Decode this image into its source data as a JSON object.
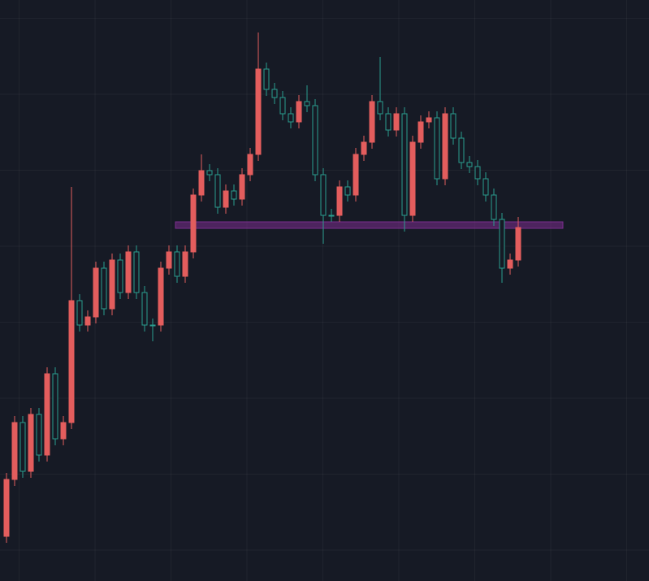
{
  "chart_data": {
    "type": "candlestick",
    "x": [
      0,
      1,
      2,
      3,
      4,
      5,
      6,
      7,
      8,
      9,
      10,
      11,
      12,
      13,
      14,
      15,
      16,
      17,
      18,
      19,
      20,
      21,
      22,
      23,
      24,
      25,
      26,
      27,
      28,
      29,
      30,
      31,
      32,
      33,
      34,
      35,
      36,
      37,
      38,
      39,
      40,
      41,
      42,
      43,
      44,
      45,
      46,
      47,
      48,
      49,
      50,
      51,
      52,
      53,
      54,
      55,
      56,
      57,
      58,
      59,
      60,
      61,
      62,
      63
    ],
    "open": [
      55,
      125,
      195,
      135,
      205,
      155,
      255,
      175,
      195,
      345,
      315,
      325,
      385,
      335,
      395,
      355,
      405,
      355,
      315,
      315,
      385,
      405,
      375,
      405,
      475,
      505,
      500,
      460,
      480,
      470,
      500,
      525,
      630,
      605,
      595,
      575,
      565,
      590,
      585,
      500,
      450,
      450,
      485,
      475,
      525,
      540,
      590,
      575,
      555,
      575,
      450,
      540,
      565,
      570,
      495,
      575,
      545,
      515,
      510,
      495,
      475,
      445,
      385,
      395
    ],
    "high": [
      133,
      203,
      203,
      213,
      213,
      263,
      263,
      203,
      485,
      353,
      333,
      393,
      393,
      403,
      403,
      413,
      413,
      363,
      323,
      393,
      413,
      413,
      413,
      483,
      525,
      513,
      508,
      488,
      488,
      508,
      533,
      675,
      638,
      613,
      603,
      583,
      598,
      610,
      593,
      508,
      458,
      493,
      493,
      533,
      548,
      598,
      645,
      583,
      583,
      583,
      548,
      573,
      578,
      578,
      583,
      583,
      553,
      523,
      518,
      503,
      483,
      453,
      403,
      448
    ],
    "low": [
      47,
      117,
      127,
      127,
      147,
      147,
      167,
      167,
      187,
      307,
      307,
      317,
      327,
      327,
      347,
      347,
      347,
      307,
      295,
      307,
      377,
      367,
      367,
      397,
      467,
      492,
      452,
      452,
      462,
      462,
      492,
      517,
      597,
      587,
      567,
      557,
      557,
      577,
      492,
      415,
      442,
      442,
      467,
      467,
      517,
      532,
      567,
      547,
      547,
      430,
      442,
      532,
      557,
      487,
      487,
      537,
      507,
      502,
      487,
      467,
      437,
      367,
      377,
      387
    ],
    "close": [
      125,
      195,
      135,
      205,
      155,
      255,
      175,
      195,
      345,
      315,
      325,
      385,
      335,
      395,
      355,
      405,
      355,
      315,
      315,
      385,
      405,
      375,
      405,
      475,
      505,
      500,
      460,
      480,
      470,
      500,
      525,
      630,
      605,
      595,
      575,
      565,
      590,
      585,
      500,
      450,
      450,
      485,
      475,
      525,
      540,
      590,
      575,
      555,
      575,
      450,
      540,
      565,
      570,
      495,
      575,
      545,
      515,
      510,
      495,
      475,
      445,
      385,
      395,
      435
    ],
    "up_color": "#e35d5d",
    "down_color": "#2a9d8f",
    "xlim": [
      -0.8,
      79.1
    ],
    "ylim": [
      0,
      715
    ],
    "grid": true,
    "zone": {
      "x": [
        20.8,
        68.5
      ],
      "y": [
        434,
        442
      ],
      "color": "#7b2d8e"
    }
  }
}
